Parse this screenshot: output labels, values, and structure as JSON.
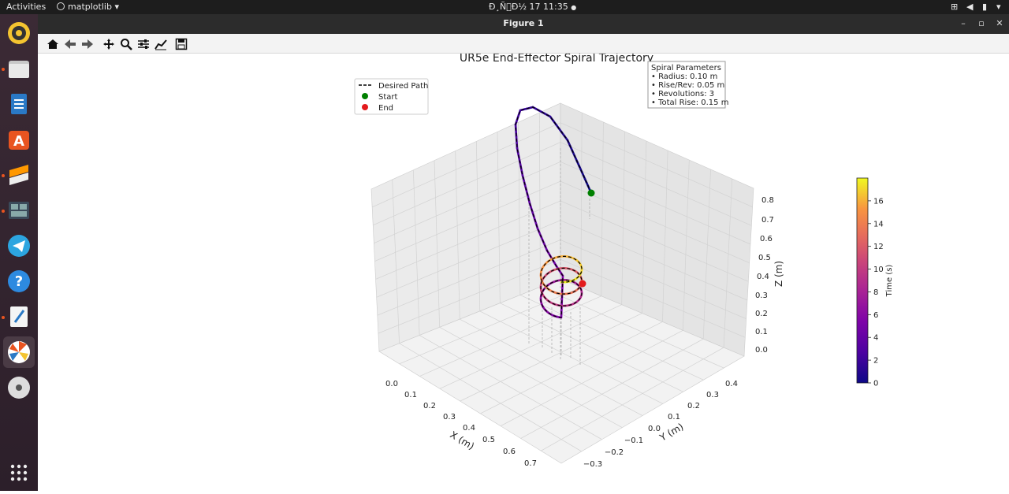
{
  "topbar": {
    "activities": "Activities",
    "app_menu": "matplotlib",
    "clock": "Ð¸Ñ\u0000Ð½ 17 11:35"
  },
  "window": {
    "title": "Figure 1"
  },
  "chart_data": {
    "type": "scatter",
    "projection": "3d",
    "title": "UR5e End-Effector Spiral Trajectory",
    "xlabel": "X (m)",
    "ylabel": "Y (m)",
    "zlabel": "Z (m)",
    "x_ticks": [
      "0.0",
      "0.1",
      "0.2",
      "0.3",
      "0.4",
      "0.5",
      "0.6",
      "0.7"
    ],
    "y_ticks": [
      "−0.3",
      "−0.2",
      "−0.1",
      "0.0",
      "0.1",
      "0.2",
      "0.3",
      "0.4"
    ],
    "z_ticks": [
      "0.0",
      "0.1",
      "0.2",
      "0.3",
      "0.4",
      "0.5",
      "0.6",
      "0.7",
      "0.8"
    ],
    "legend": {
      "placement": "upper-left",
      "entries": [
        "Desired Path",
        "Start",
        "End"
      ]
    },
    "start_point": {
      "x": 0.0,
      "y": 0.3,
      "z": 0.55
    },
    "end_point": {
      "x": 0.4,
      "y": 0.0,
      "z": 0.35
    },
    "spiral": {
      "radius": 0.1,
      "rise_per_rev": 0.05,
      "revolutions": 3,
      "total_rise": 0.15
    },
    "info_box": {
      "lines": [
        "Spiral Parameters",
        "• Radius: 0.10 m",
        "• Rise/Rev: 0.05 m",
        "• Revolutions: 3",
        "• Total Rise: 0.15 m"
      ]
    },
    "colorbar": {
      "label": "Time (s)",
      "range": [
        0,
        18
      ],
      "ticks": [
        "0",
        "2",
        "4",
        "6",
        "8",
        "10",
        "12",
        "14",
        "16"
      ],
      "colormap": "plasma"
    },
    "grid": true,
    "colors": {
      "start": "#008000",
      "end": "#e31a1c",
      "desired_path": "#000000"
    }
  }
}
